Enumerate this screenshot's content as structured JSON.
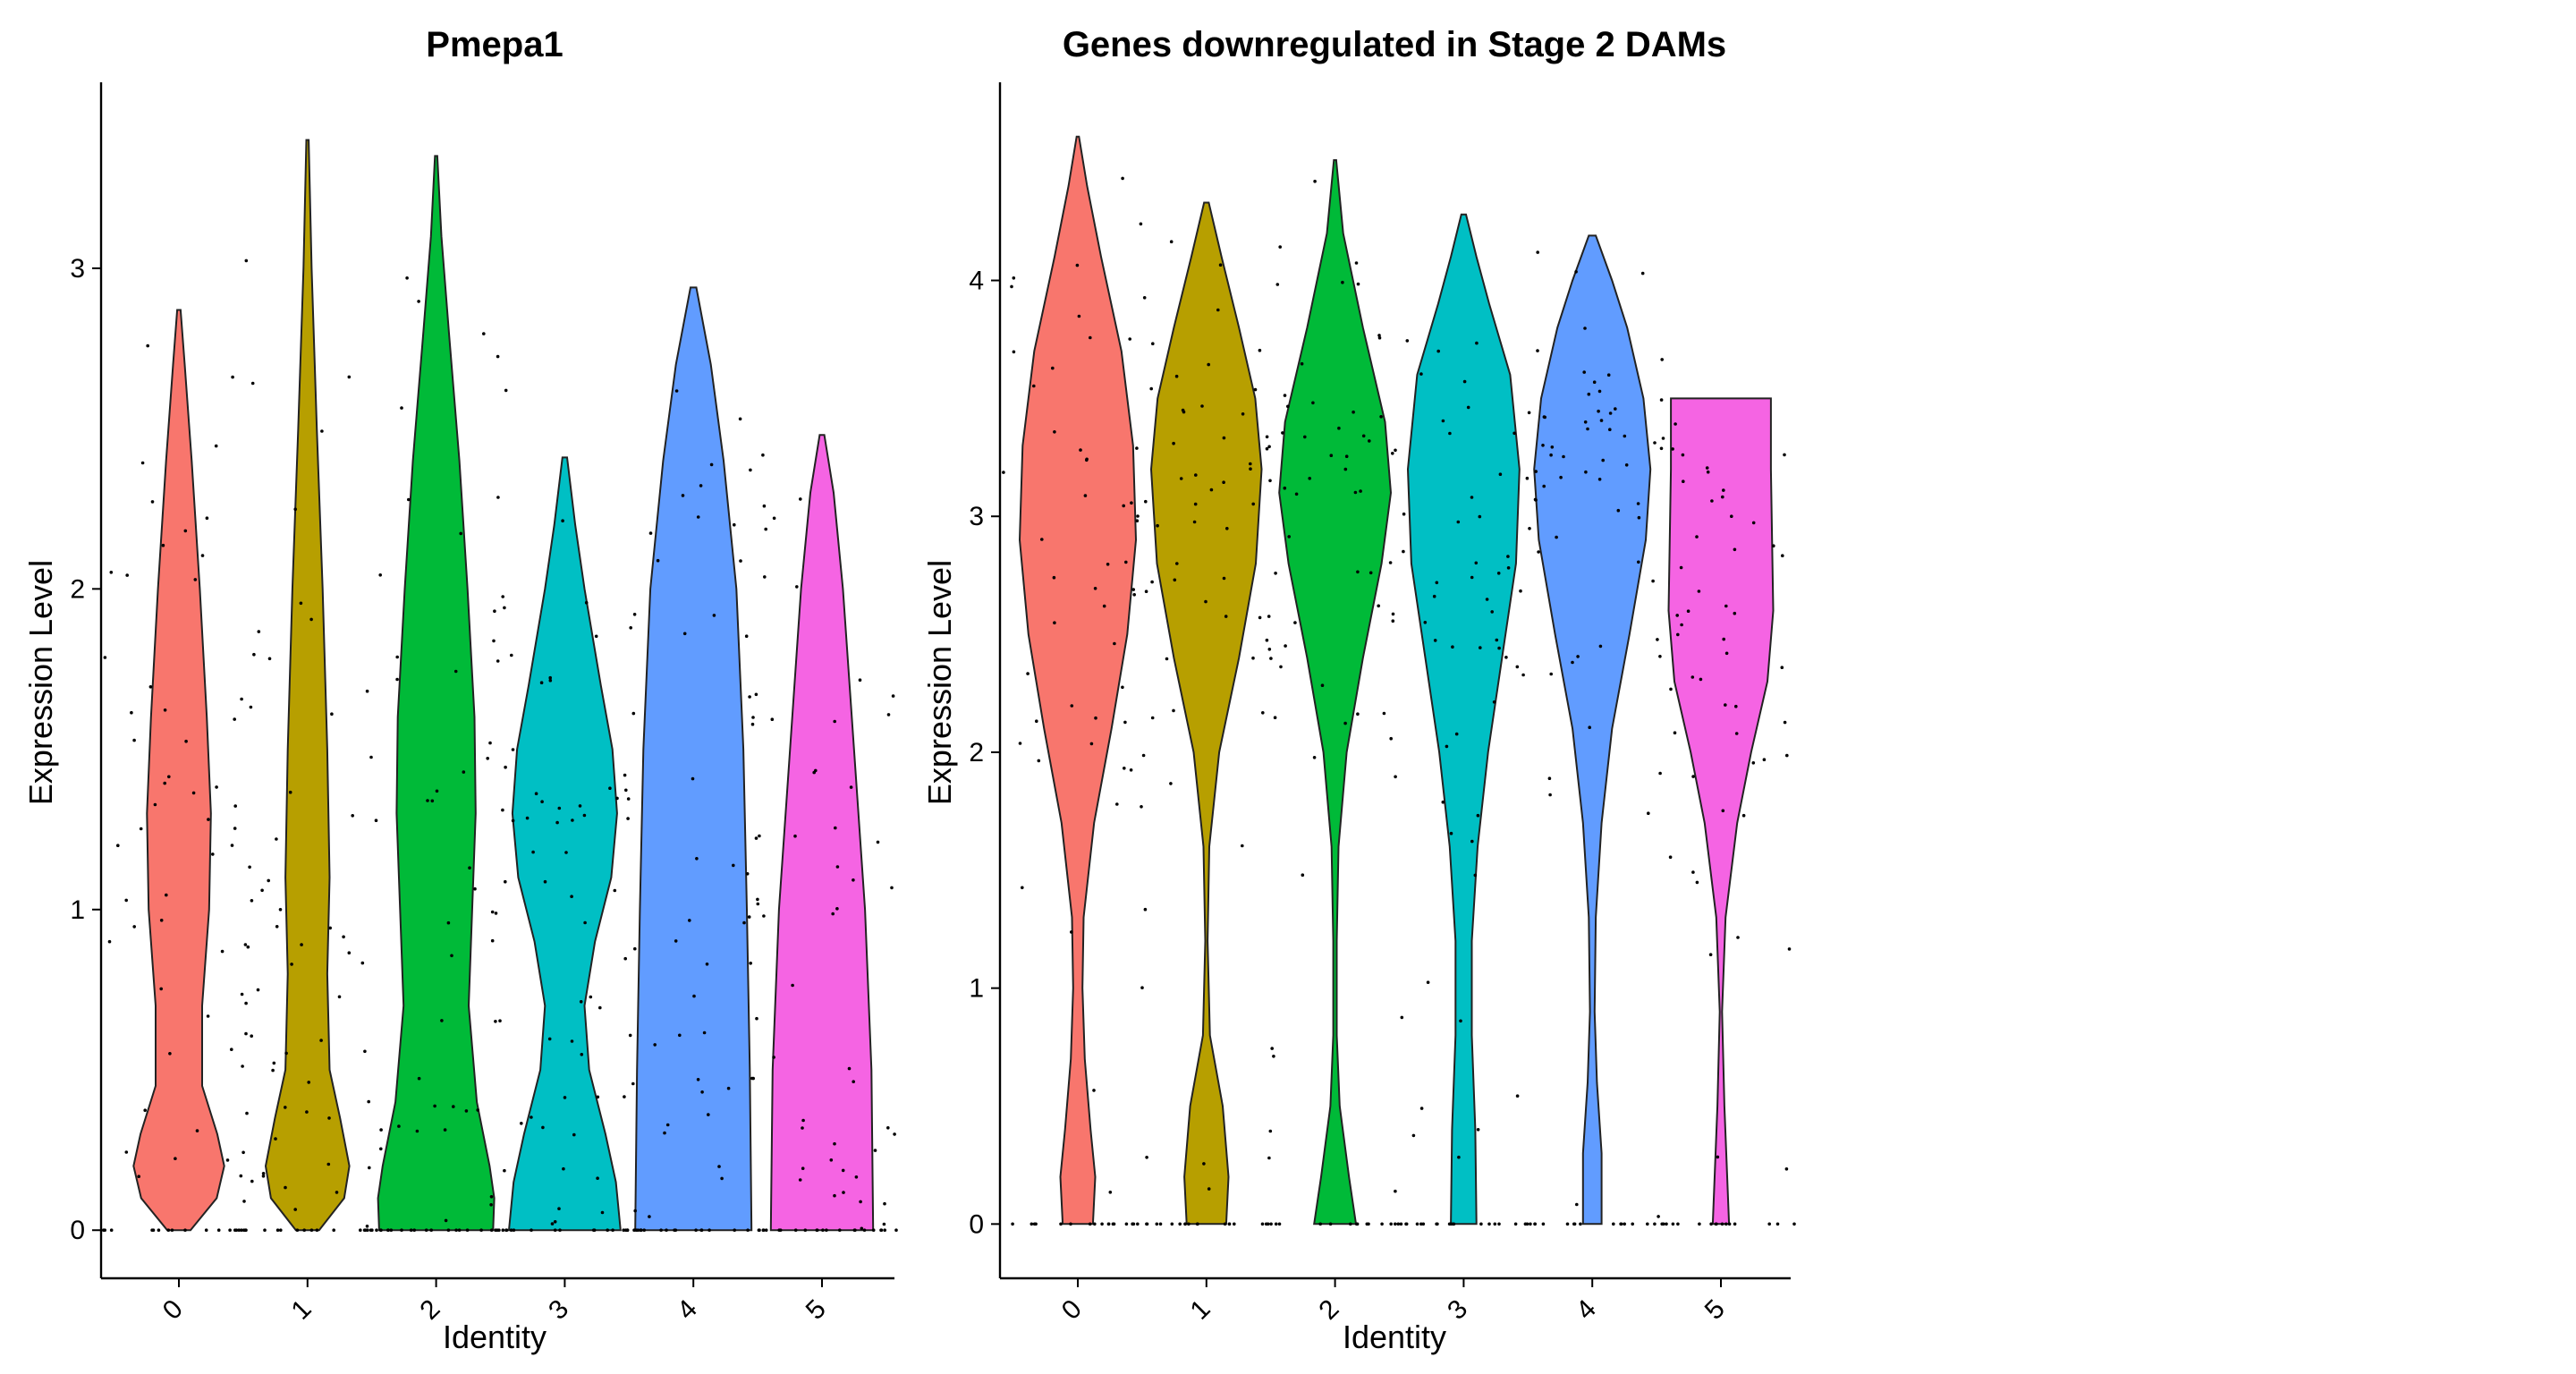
{
  "chart_data": [
    {
      "type": "violin",
      "title": "Pmepa1",
      "xlabel": "Identity",
      "ylabel": "Expression Level",
      "categories": [
        "0",
        "1",
        "2",
        "3",
        "4",
        "5"
      ],
      "colors": [
        "#F8766D",
        "#B79F00",
        "#00BA38",
        "#00BFC4",
        "#619CFF",
        "#F564E3"
      ],
      "yticks": [
        0,
        1,
        2,
        3
      ],
      "ylim": [
        -0.15,
        3.58
      ],
      "legend": "none",
      "grid": false,
      "violins": [
        {
          "category": "0",
          "max": 2.87,
          "profile": [
            [
              0,
              0.2
            ],
            [
              0.1,
              0.65
            ],
            [
              0.2,
              0.78
            ],
            [
              0.3,
              0.66
            ],
            [
              0.45,
              0.4
            ],
            [
              0.7,
              0.4
            ],
            [
              1.0,
              0.52
            ],
            [
              1.3,
              0.55
            ],
            [
              1.6,
              0.48
            ],
            [
              2.0,
              0.36
            ],
            [
              2.4,
              0.22
            ],
            [
              2.7,
              0.1
            ],
            [
              2.87,
              0.03
            ]
          ]
        },
        {
          "category": "1",
          "max": 3.4,
          "profile": [
            [
              0,
              0.2
            ],
            [
              0.1,
              0.63
            ],
            [
              0.2,
              0.72
            ],
            [
              0.35,
              0.56
            ],
            [
              0.5,
              0.38
            ],
            [
              0.8,
              0.34
            ],
            [
              1.1,
              0.38
            ],
            [
              1.5,
              0.34
            ],
            [
              2.0,
              0.26
            ],
            [
              2.5,
              0.16
            ],
            [
              3.0,
              0.07
            ],
            [
              3.4,
              0.02
            ]
          ]
        },
        {
          "category": "2",
          "max": 3.35,
          "profile": [
            [
              0,
              0.98
            ],
            [
              0.1,
              1.0
            ],
            [
              0.2,
              0.92
            ],
            [
              0.4,
              0.7
            ],
            [
              0.7,
              0.56
            ],
            [
              1.0,
              0.62
            ],
            [
              1.3,
              0.68
            ],
            [
              1.6,
              0.66
            ],
            [
              2.0,
              0.54
            ],
            [
              2.4,
              0.4
            ],
            [
              2.8,
              0.22
            ],
            [
              3.1,
              0.09
            ],
            [
              3.35,
              0.02
            ]
          ]
        },
        {
          "category": "3",
          "max": 2.41,
          "profile": [
            [
              0,
              0.96
            ],
            [
              0.15,
              0.88
            ],
            [
              0.3,
              0.7
            ],
            [
              0.5,
              0.42
            ],
            [
              0.7,
              0.34
            ],
            [
              0.9,
              0.52
            ],
            [
              1.1,
              0.8
            ],
            [
              1.3,
              0.9
            ],
            [
              1.5,
              0.82
            ],
            [
              1.7,
              0.62
            ],
            [
              2.0,
              0.34
            ],
            [
              2.2,
              0.18
            ],
            [
              2.41,
              0.04
            ]
          ]
        },
        {
          "category": "4",
          "max": 2.94,
          "profile": [
            [
              0,
              1.0
            ],
            [
              0.5,
              0.97
            ],
            [
              1.0,
              0.92
            ],
            [
              1.5,
              0.86
            ],
            [
              2.0,
              0.74
            ],
            [
              2.4,
              0.52
            ],
            [
              2.7,
              0.3
            ],
            [
              2.94,
              0.05
            ]
          ]
        },
        {
          "category": "5",
          "max": 2.48,
          "profile": [
            [
              0,
              0.88
            ],
            [
              0.5,
              0.85
            ],
            [
              1.0,
              0.74
            ],
            [
              1.5,
              0.55
            ],
            [
              2.0,
              0.36
            ],
            [
              2.3,
              0.2
            ],
            [
              2.48,
              0.04
            ]
          ]
        }
      ]
    },
    {
      "type": "violin",
      "title": "Genes downregulated in Stage 2 DAMs",
      "xlabel": "Identity",
      "ylabel": "Expression Level",
      "categories": [
        "0",
        "1",
        "2",
        "3",
        "4",
        "5"
      ],
      "colors": [
        "#F8766D",
        "#B79F00",
        "#00BA38",
        "#00BFC4",
        "#619CFF",
        "#F564E3"
      ],
      "yticks": [
        0,
        1,
        2,
        3,
        4
      ],
      "ylim": [
        -0.23,
        4.84
      ],
      "legend": "none",
      "grid": false,
      "violins": [
        {
          "category": "0",
          "max": 4.61,
          "profile": [
            [
              0,
              0.26
            ],
            [
              0.2,
              0.3
            ],
            [
              0.4,
              0.22
            ],
            [
              0.7,
              0.12
            ],
            [
              1.0,
              0.08
            ],
            [
              1.3,
              0.1
            ],
            [
              1.7,
              0.28
            ],
            [
              2.1,
              0.58
            ],
            [
              2.5,
              0.85
            ],
            [
              2.9,
              1.0
            ],
            [
              3.3,
              0.95
            ],
            [
              3.7,
              0.75
            ],
            [
              4.1,
              0.4
            ],
            [
              4.4,
              0.16
            ],
            [
              4.61,
              0.02
            ]
          ]
        },
        {
          "category": "1",
          "max": 4.33,
          "profile": [
            [
              0,
              0.34
            ],
            [
              0.2,
              0.38
            ],
            [
              0.5,
              0.28
            ],
            [
              0.8,
              0.06
            ],
            [
              1.2,
              0.02
            ],
            [
              1.6,
              0.05
            ],
            [
              2.0,
              0.22
            ],
            [
              2.4,
              0.56
            ],
            [
              2.8,
              0.85
            ],
            [
              3.2,
              0.95
            ],
            [
              3.5,
              0.84
            ],
            [
              3.8,
              0.56
            ],
            [
              4.1,
              0.26
            ],
            [
              4.33,
              0.04
            ]
          ]
        },
        {
          "category": "2",
          "max": 4.51,
          "profile": [
            [
              0,
              0.36
            ],
            [
              0.2,
              0.24
            ],
            [
              0.5,
              0.08
            ],
            [
              0.8,
              0.03
            ],
            [
              1.2,
              0.03
            ],
            [
              1.6,
              0.06
            ],
            [
              2.0,
              0.2
            ],
            [
              2.4,
              0.48
            ],
            [
              2.8,
              0.8
            ],
            [
              3.1,
              0.96
            ],
            [
              3.4,
              0.86
            ],
            [
              3.8,
              0.48
            ],
            [
              4.2,
              0.14
            ],
            [
              4.51,
              0.02
            ]
          ]
        },
        {
          "category": "3",
          "max": 4.28,
          "profile": [
            [
              0,
              0.22
            ],
            [
              0.4,
              0.2
            ],
            [
              0.8,
              0.14
            ],
            [
              1.2,
              0.14
            ],
            [
              1.6,
              0.24
            ],
            [
              2.0,
              0.42
            ],
            [
              2.4,
              0.66
            ],
            [
              2.8,
              0.9
            ],
            [
              3.2,
              0.96
            ],
            [
              3.6,
              0.8
            ],
            [
              3.9,
              0.44
            ],
            [
              4.1,
              0.22
            ],
            [
              4.28,
              0.04
            ]
          ]
        },
        {
          "category": "4",
          "max": 4.19,
          "profile": [
            [
              0,
              0.16
            ],
            [
              0.3,
              0.16
            ],
            [
              0.6,
              0.08
            ],
            [
              0.9,
              0.04
            ],
            [
              1.3,
              0.06
            ],
            [
              1.7,
              0.16
            ],
            [
              2.1,
              0.34
            ],
            [
              2.5,
              0.64
            ],
            [
              2.9,
              0.92
            ],
            [
              3.2,
              1.0
            ],
            [
              3.5,
              0.88
            ],
            [
              3.8,
              0.6
            ],
            [
              4.0,
              0.34
            ],
            [
              4.19,
              0.06
            ]
          ]
        },
        {
          "category": "5",
          "max": 3.5,
          "profile": [
            [
              0,
              0.14
            ],
            [
              0.5,
              0.06
            ],
            [
              0.9,
              0.02
            ],
            [
              1.3,
              0.08
            ],
            [
              1.7,
              0.28
            ],
            [
              2.0,
              0.52
            ],
            [
              2.3,
              0.8
            ],
            [
              2.6,
              0.9
            ],
            [
              2.9,
              0.88
            ],
            [
              3.2,
              0.86
            ],
            [
              3.5,
              0.86
            ]
          ]
        }
      ]
    }
  ]
}
